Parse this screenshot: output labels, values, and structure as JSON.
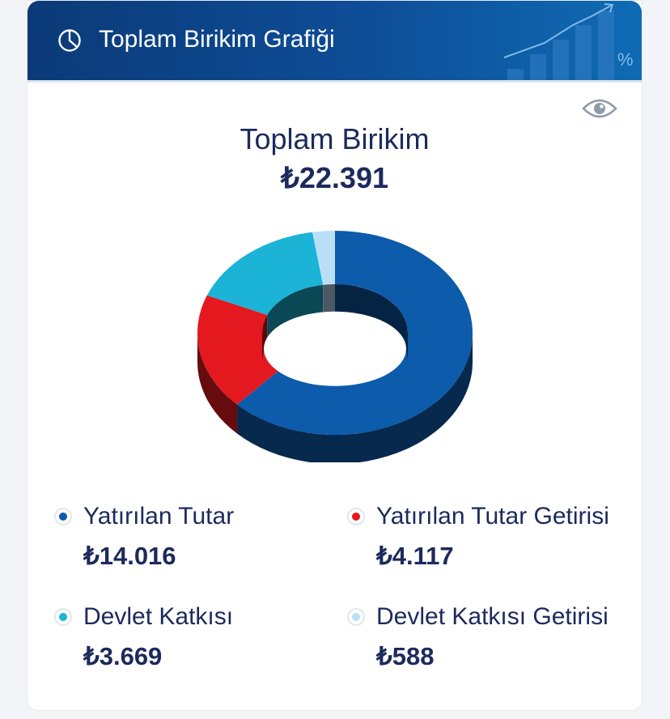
{
  "header": {
    "title": "Toplam Birikim Grafiği"
  },
  "summary": {
    "label": "Toplam Birikim",
    "value": "₺22.391"
  },
  "chart_data": {
    "type": "pie",
    "style": "donut-3d",
    "title": "",
    "slices": [
      {
        "name": "Yatırılan Tutar",
        "value": 14016,
        "display": "₺14.016",
        "color": "#0d5bab"
      },
      {
        "name": "Yatırılan Tutar Getirisi",
        "value": 4117,
        "display": "₺4.117",
        "color": "#e3191f"
      },
      {
        "name": "Devlet Katkısı",
        "value": 3669,
        "display": "₺3.669",
        "color": "#1bb3d6"
      },
      {
        "name": "Devlet Katkısı Getirisi",
        "value": 588,
        "display": "₺588",
        "color": "#b9dff7"
      }
    ]
  },
  "icons": {
    "header": "pie-chart-icon",
    "visibility": "eye-icon"
  }
}
